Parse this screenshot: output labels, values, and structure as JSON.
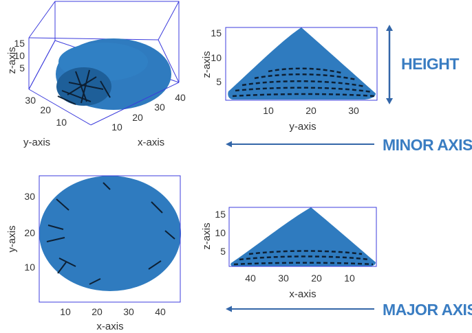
{
  "colors": {
    "fill": "#2f7bbf",
    "box": "#3b3bdc",
    "label": "#3a7dc2",
    "arrow": "#3366a8",
    "shadow": "#0d1f33"
  },
  "panels": {
    "iso": {
      "z_ticks": [
        "15",
        "10",
        "5"
      ],
      "y_ticks": [
        "30",
        "20",
        "10"
      ],
      "x_ticks": [
        "10",
        "20",
        "30",
        "40"
      ],
      "z_label": "z-axis",
      "y_label": "y-axis",
      "x_label": "x-axis"
    },
    "side_y": {
      "z_ticks": [
        "15",
        "10",
        "5"
      ],
      "y_ticks": [
        "10",
        "20",
        "30"
      ],
      "z_label": "z-axis",
      "y_label": "y-axis"
    },
    "top": {
      "y_ticks": [
        "30",
        "20",
        "10"
      ],
      "x_ticks": [
        "10",
        "20",
        "30",
        "40"
      ],
      "y_label": "y-axis",
      "x_label": "x-axis"
    },
    "side_x": {
      "z_ticks": [
        "15",
        "10",
        "5"
      ],
      "x_ticks": [
        "40",
        "30",
        "20",
        "10"
      ],
      "z_label": "z-axis",
      "x_label": "x-axis"
    }
  },
  "labels": {
    "height": "HEIGHT",
    "minor_axis": "MINOR AXIS",
    "major_axis": "MAJOR AXIS"
  }
}
